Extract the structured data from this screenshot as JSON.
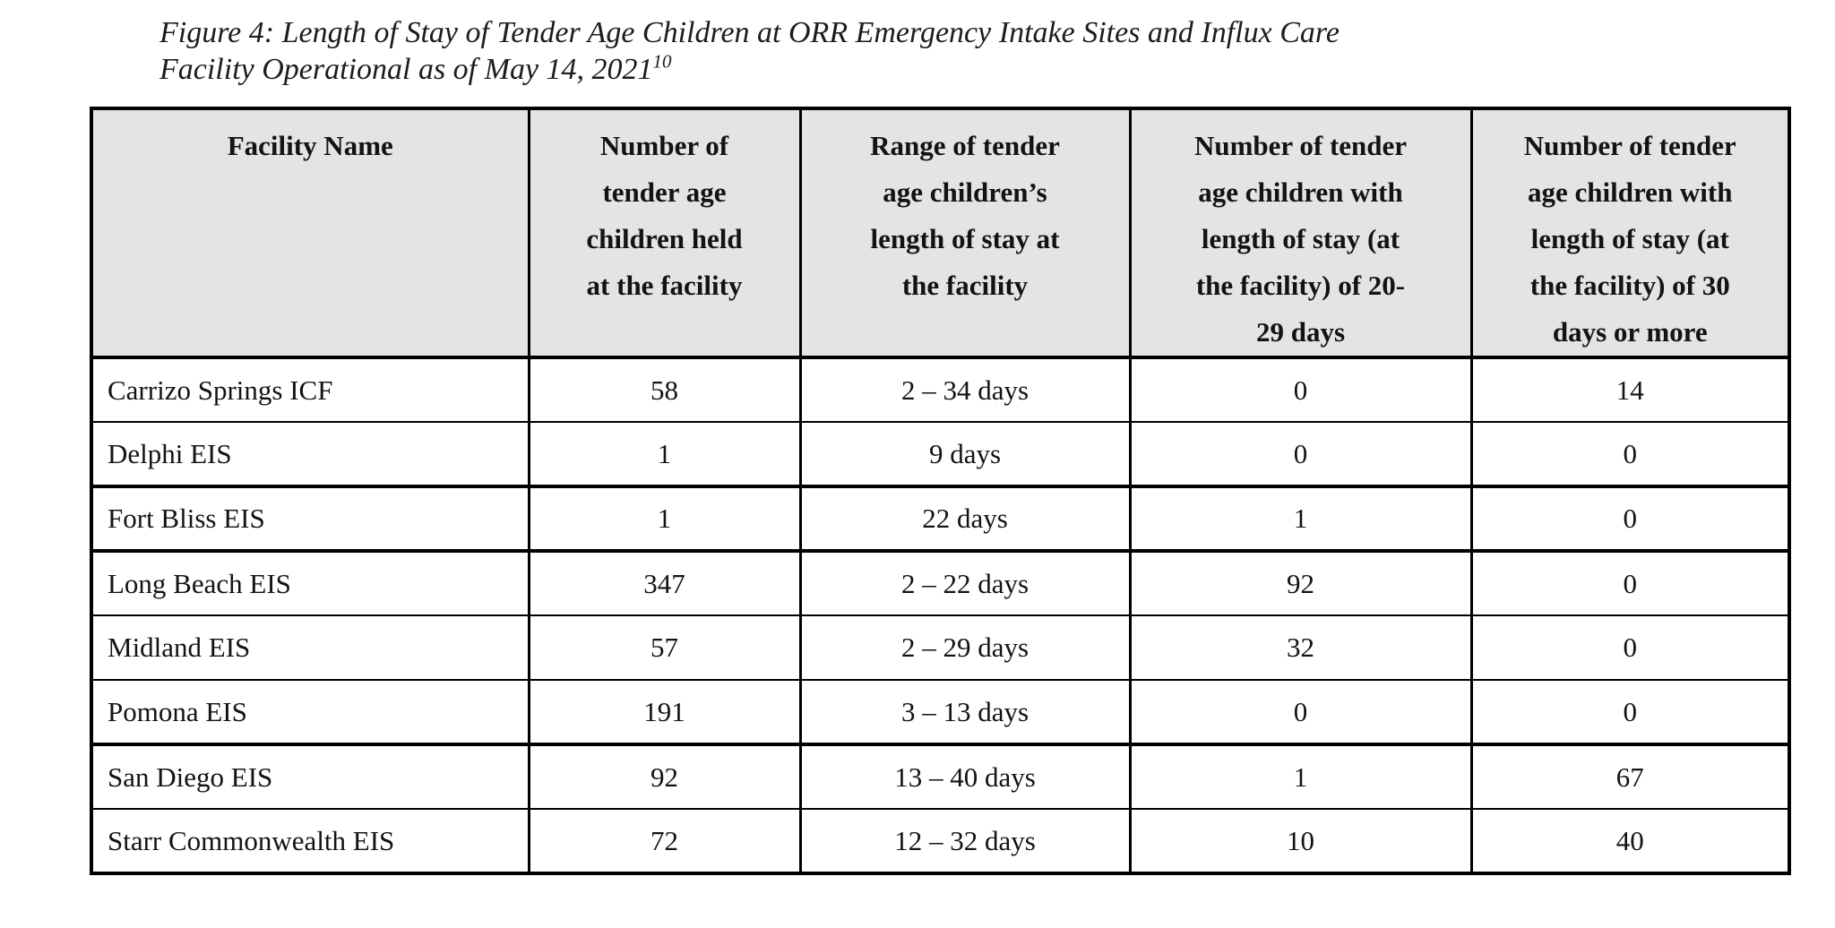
{
  "figure": {
    "title_line1": "Figure 4: Length of Stay of Tender Age Children at ORR Emergency Intake Sites and Influx Care",
    "title_line2": "Facility Operational as of May 14, 2021",
    "footnote_marker": "10"
  },
  "table": {
    "columns": [
      "Facility Name",
      "Number of\ntender age\nchildren held\nat the facility",
      "Range of tender\nage children’s\nlength of stay at\nthe facility",
      "Number of tender\nage children with\nlength of stay (at\nthe facility) of 20-\n29 days",
      "Number of tender\nage children with\nlength of stay (at\nthe facility) of 30\ndays or more"
    ],
    "rows": [
      {
        "facility": "Carrizo Springs ICF",
        "held": "58",
        "range": "2 – 34 days",
        "days_20_29": "0",
        "days_30_plus": "14"
      },
      {
        "facility": "Delphi EIS",
        "held": "1",
        "range": "9 days",
        "days_20_29": "0",
        "days_30_plus": "0"
      },
      {
        "facility": "Fort Bliss EIS",
        "held": "1",
        "range": "22 days",
        "days_20_29": "1",
        "days_30_plus": "0"
      },
      {
        "facility": "Long Beach EIS",
        "held": "347",
        "range": "2 – 22 days",
        "days_20_29": "92",
        "days_30_plus": "0"
      },
      {
        "facility": "Midland EIS",
        "held": "57",
        "range": "2 – 29 days",
        "days_20_29": "32",
        "days_30_plus": "0"
      },
      {
        "facility": "Pomona EIS",
        "held": "191",
        "range": "3 – 13 days",
        "days_20_29": "0",
        "days_30_plus": "0"
      },
      {
        "facility": "San Diego EIS",
        "held": "92",
        "range": "13 – 40 days",
        "days_20_29": "1",
        "days_30_plus": "67"
      },
      {
        "facility": "Starr Commonwealth EIS",
        "held": "72",
        "range": "12 – 32 days",
        "days_20_29": "10",
        "days_30_plus": "40"
      }
    ]
  },
  "colors": {
    "page_bg": "#ffffff",
    "header_bg": "#e4e4e4",
    "border": "#000000",
    "text": "#131313"
  }
}
